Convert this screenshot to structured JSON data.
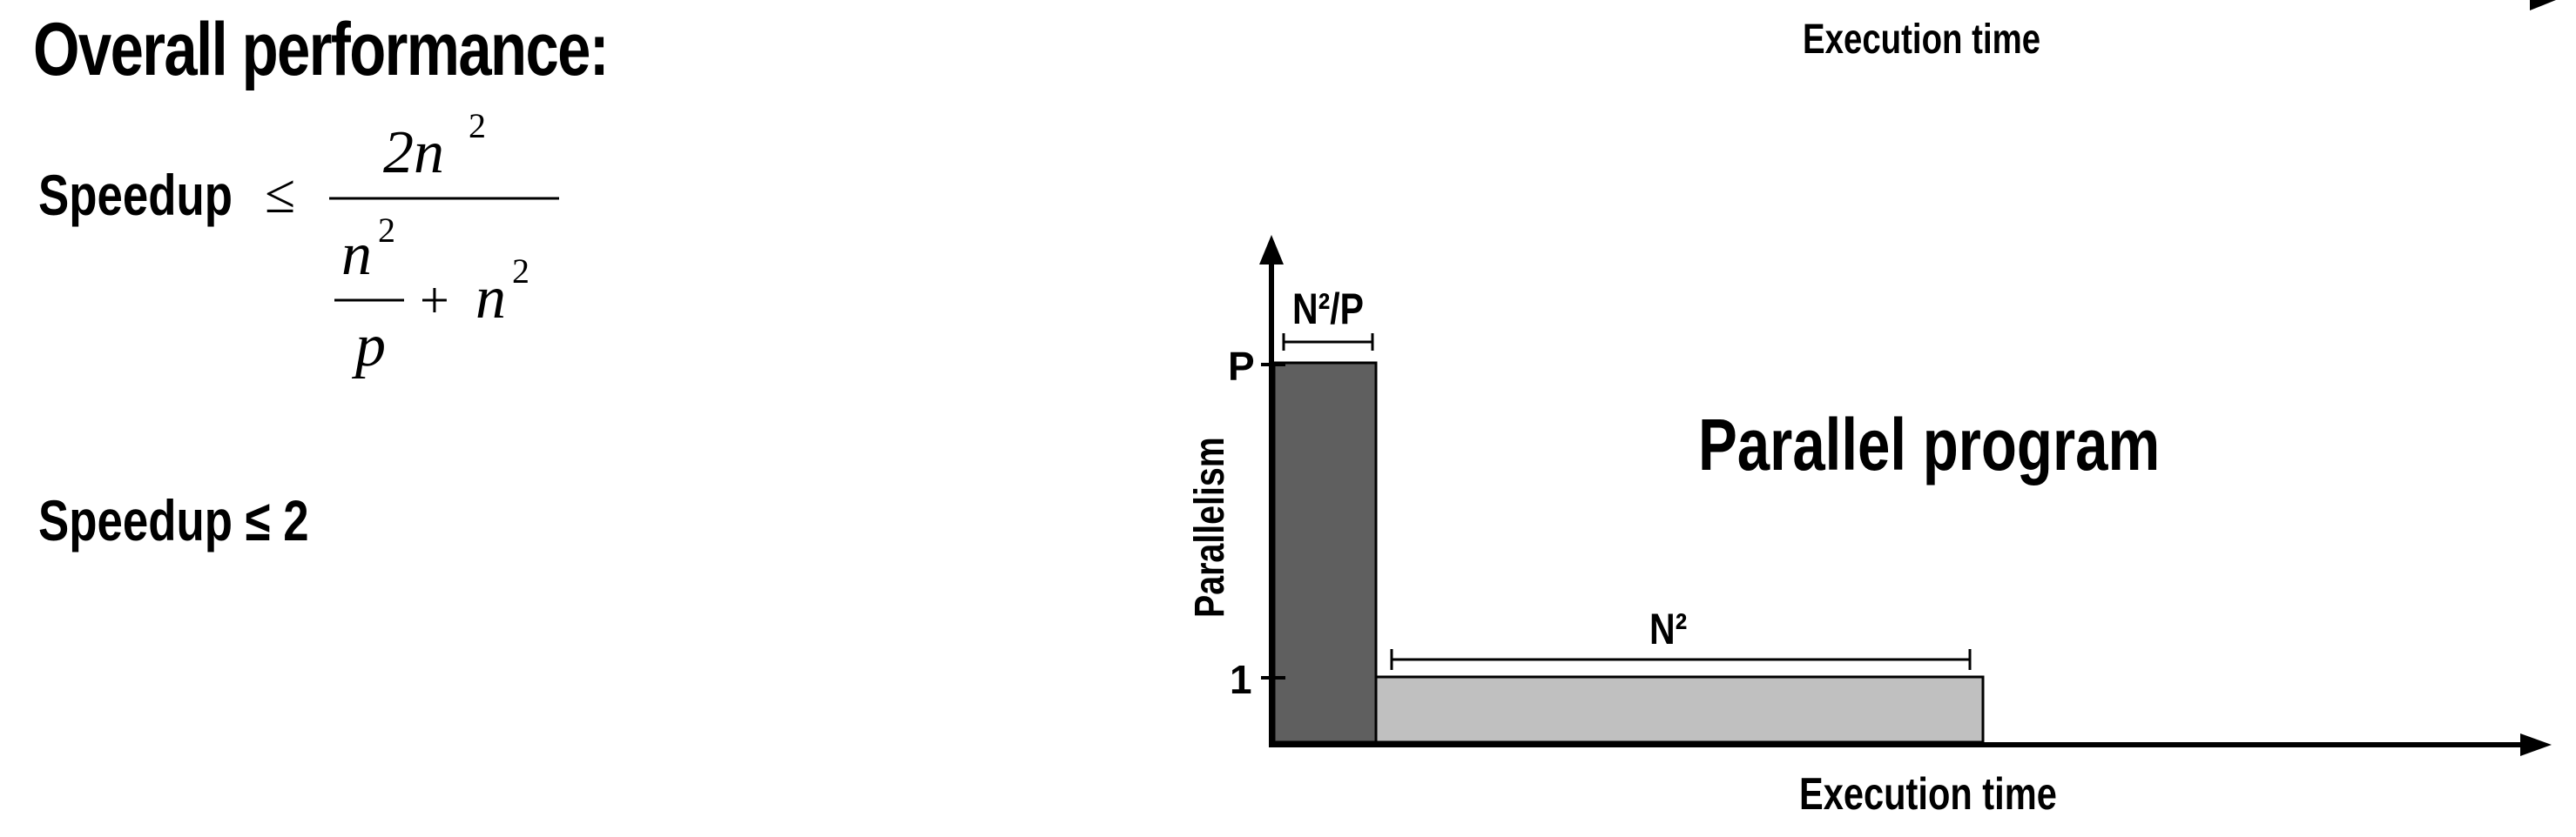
{
  "slide": {
    "heading": "Overall performance:",
    "speedup_label": "Speedup",
    "leq": "≤",
    "formula": {
      "numerator": "2n",
      "numerator_exp": "2",
      "denom_frac_num": "n",
      "denom_frac_num_exp": "2",
      "denom_frac_den": "p",
      "plus": "+",
      "denom_term": "n",
      "denom_term_exp": "2"
    },
    "speedup_result": "Speedup ≤ 2"
  },
  "top_partial": {
    "axis_label": "Execution time"
  },
  "diagram": {
    "title": "Parallel program",
    "x_axis_label": "Execution time",
    "y_axis_label": "Parallelism",
    "y_ticks": [
      "P",
      "1"
    ],
    "phase1_label": "N²/P",
    "phase2_label": "N²",
    "colors": {
      "phase1_fill": "#5f5f5f",
      "phase2_fill": "#c0c0c0",
      "axis": "#000000"
    }
  }
}
